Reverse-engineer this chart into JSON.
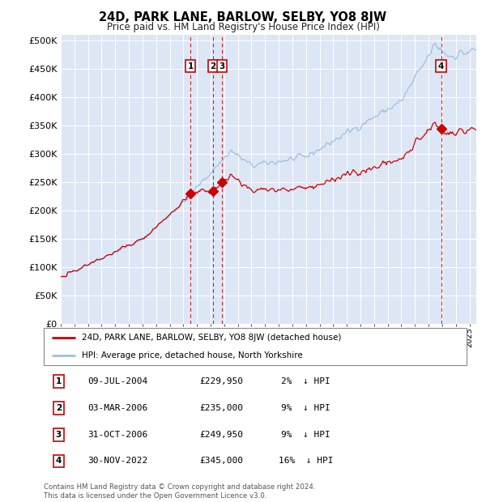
{
  "title": "24D, PARK LANE, BARLOW, SELBY, YO8 8JW",
  "subtitle": "Price paid vs. HM Land Registry's House Price Index (HPI)",
  "bg_color": "#dde6f5",
  "ylim": [
    0,
    510000
  ],
  "yticks": [
    0,
    50000,
    100000,
    150000,
    200000,
    250000,
    300000,
    350000,
    400000,
    450000,
    500000
  ],
  "ytick_labels": [
    "£0",
    "£50K",
    "£100K",
    "£150K",
    "£200K",
    "£250K",
    "£300K",
    "£350K",
    "£400K",
    "£450K",
    "£500K"
  ],
  "hpi_color": "#a0bfe0",
  "sale_color": "#cc0000",
  "dashed_line_color": "#cc0000",
  "transactions": [
    {
      "num": 1,
      "date_x": 2004.52,
      "price": 229950,
      "label": "1",
      "date_str": "09-JUL-2004",
      "pct": "2%",
      "dir": "↓"
    },
    {
      "num": 2,
      "date_x": 2006.17,
      "price": 235000,
      "label": "2",
      "date_str": "03-MAR-2006",
      "pct": "9%",
      "dir": "↓"
    },
    {
      "num": 3,
      "date_x": 2006.83,
      "price": 249950,
      "label": "3",
      "date_str": "31-OCT-2006",
      "pct": "9%",
      "dir": "↓"
    },
    {
      "num": 4,
      "date_x": 2022.92,
      "price": 345000,
      "label": "4",
      "date_str": "30-NOV-2022",
      "pct": "16%",
      "dir": "↓"
    }
  ],
  "legend_label_sale": "24D, PARK LANE, BARLOW, SELBY, YO8 8JW (detached house)",
  "legend_label_hpi": "HPI: Average price, detached house, North Yorkshire",
  "footnote": "Contains HM Land Registry data © Crown copyright and database right 2024.\nThis data is licensed under the Open Government Licence v3.0.",
  "xmin": 1995.0,
  "xmax": 2025.5
}
